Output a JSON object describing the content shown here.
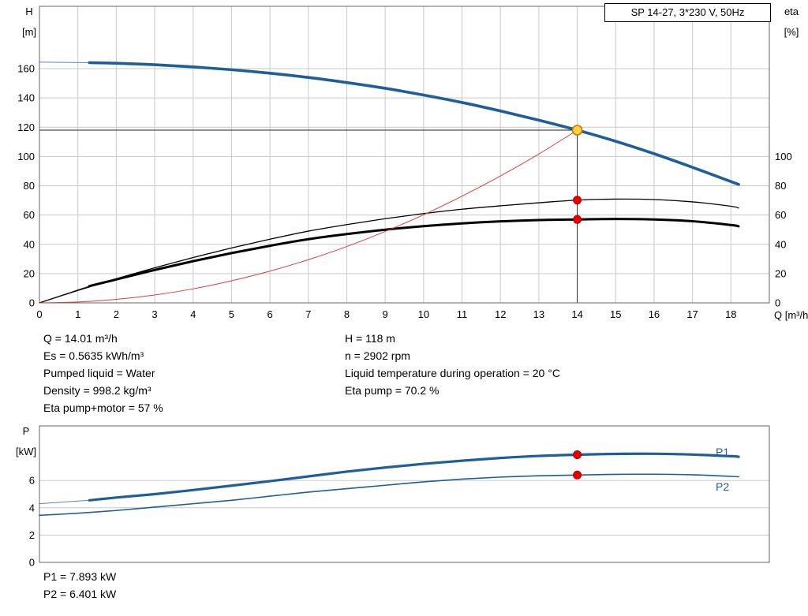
{
  "info_left": [
    "Q = 14.01 m³/h",
    "Es = 0.5635 kWh/m³",
    "Pumped liquid = Water",
    "Density = 998.2 kg/m³",
    "Eta pump+motor = 57 %"
  ],
  "info_right": [
    "H = 118 m",
    "n = 2902 rpm",
    "Liquid temperature during operation = 20 °C",
    "Eta pump = 70.2 %"
  ],
  "power_info": [
    "P1 = 7.893 kW",
    "P2 = 6.401 kW"
  ],
  "curve_labels": {
    "p1": "P1",
    "p2": "P2"
  },
  "colors": {
    "curve_blue": "#205e97",
    "curve_red": "#e03c3c",
    "marker_red": "#e60000",
    "marker_red_edge": "#b00000",
    "marker_yellow_fill": "#ffd53e",
    "marker_yellow_stroke": "#d07000",
    "duty_line": "#222222",
    "grid": "#c9c9c9",
    "frame": "#666666"
  },
  "chart_data": [
    {
      "type": "line",
      "title": "SP 14-27, 3*230 V, 50Hz",
      "x": {
        "label": "Q [m³/h]",
        "min": 0,
        "max": 19,
        "ticks": [
          0,
          1,
          2,
          3,
          4,
          5,
          6,
          7,
          8,
          9,
          10,
          11,
          12,
          13,
          14,
          15,
          16,
          17,
          18
        ]
      },
      "y_left": {
        "label_lines": [
          "H",
          "[m]"
        ],
        "min": 0,
        "max": 202.6,
        "ticks": [
          0,
          20,
          40,
          60,
          80,
          100,
          120,
          140,
          160
        ]
      },
      "y_right": {
        "label_lines": [
          "eta",
          "[%]"
        ],
        "ticks": [
          0,
          20,
          40,
          60,
          80,
          100
        ]
      },
      "duty_point": {
        "q": 14,
        "h": 118
      },
      "series": [
        {
          "name": "head",
          "color_key": "curve_blue",
          "width": 3.6,
          "thin_until": 1.3,
          "points": [
            [
              0,
              164.5
            ],
            [
              1.3,
              164.1
            ],
            [
              2,
              163.7
            ],
            [
              3,
              162.7
            ],
            [
              4,
              161.2
            ],
            [
              5,
              159.3
            ],
            [
              6,
              156.9
            ],
            [
              7,
              154.0
            ],
            [
              8,
              150.5
            ],
            [
              9,
              146.6
            ],
            [
              10,
              142.0
            ],
            [
              11,
              136.9
            ],
            [
              12,
              131.1
            ],
            [
              13,
              124.8
            ],
            [
              14,
              118.0
            ],
            [
              15,
              110.4
            ],
            [
              16,
              101.9
            ],
            [
              17,
              92.6
            ],
            [
              18,
              82.9
            ],
            [
              18.2,
              80.9
            ]
          ]
        },
        {
          "name": "eta-pump",
          "color": "#000000",
          "width": 1.3,
          "points": [
            [
              0,
              0
            ],
            [
              1,
              8.5
            ],
            [
              2,
              16.5
            ],
            [
              3,
              24
            ],
            [
              4,
              31
            ],
            [
              5,
              37.5
            ],
            [
              6,
              43.5
            ],
            [
              7,
              49
            ],
            [
              8,
              53.5
            ],
            [
              9,
              57.5
            ],
            [
              10,
              61
            ],
            [
              11,
              64
            ],
            [
              12,
              66.3
            ],
            [
              13,
              68.4
            ],
            [
              14,
              70.2
            ],
            [
              15,
              70.9
            ],
            [
              16,
              70.6
            ],
            [
              17,
              69
            ],
            [
              18,
              66
            ],
            [
              18.2,
              64.8
            ]
          ]
        },
        {
          "name": "eta-pump-motor",
          "color": "#000000",
          "width": 3,
          "thin_until": 1.3,
          "points": [
            [
              0,
              0
            ],
            [
              1.3,
              11.5
            ],
            [
              2,
              16
            ],
            [
              3,
              22.5
            ],
            [
              4,
              28.5
            ],
            [
              5,
              34
            ],
            [
              6,
              39
            ],
            [
              7,
              43.5
            ],
            [
              8,
              47
            ],
            [
              9,
              50
            ],
            [
              10,
              52.4
            ],
            [
              11,
              54.3
            ],
            [
              12,
              55.7
            ],
            [
              13,
              56.6
            ],
            [
              14,
              57
            ],
            [
              15,
              57.3
            ],
            [
              16,
              57
            ],
            [
              17,
              55.8
            ],
            [
              18,
              53.2
            ],
            [
              18.2,
              52.3
            ]
          ]
        },
        {
          "name": "duty-parabola",
          "color_key": "curve_red",
          "width": 1,
          "points": [
            [
              0,
              0
            ],
            [
              1,
              0.6
            ],
            [
              2,
              2.4
            ],
            [
              3,
              5.4
            ],
            [
              4,
              9.6
            ],
            [
              5,
              15.1
            ],
            [
              6,
              21.7
            ],
            [
              7,
              29.5
            ],
            [
              8,
              38.5
            ],
            [
              9,
              48.8
            ],
            [
              10,
              60.2
            ],
            [
              11,
              72.9
            ],
            [
              12,
              86.7
            ],
            [
              13,
              101.7
            ],
            [
              14,
              118
            ]
          ]
        }
      ],
      "markers": [
        {
          "q": 14,
          "v": 118,
          "style": "duty"
        },
        {
          "q": 14,
          "v": 70.2,
          "style": "dot"
        },
        {
          "q": 14,
          "v": 57,
          "style": "dot"
        }
      ]
    },
    {
      "type": "line",
      "x": {
        "min": 0,
        "max": 19,
        "ticks": []
      },
      "y": {
        "label_lines": [
          "P",
          "[kW]"
        ],
        "min": 0,
        "max": 10,
        "ticks": [
          0,
          2,
          4,
          6
        ]
      },
      "series": [
        {
          "name": "P1",
          "color_key": "curve_blue",
          "width": 3.2,
          "thin_until": 1.3,
          "points": [
            [
              0,
              4.3
            ],
            [
              1.3,
              4.55
            ],
            [
              2,
              4.75
            ],
            [
              3,
              5.0
            ],
            [
              4,
              5.3
            ],
            [
              5,
              5.62
            ],
            [
              6,
              5.95
            ],
            [
              7,
              6.3
            ],
            [
              8,
              6.65
            ],
            [
              9,
              6.95
            ],
            [
              10,
              7.22
            ],
            [
              11,
              7.45
            ],
            [
              12,
              7.65
            ],
            [
              13,
              7.8
            ],
            [
              14,
              7.89
            ],
            [
              15,
              7.95
            ],
            [
              16,
              7.96
            ],
            [
              17,
              7.9
            ],
            [
              18,
              7.78
            ],
            [
              18.2,
              7.74
            ]
          ]
        },
        {
          "name": "P2",
          "color_key": "curve_blue",
          "width": 1.6,
          "points": [
            [
              0,
              3.45
            ],
            [
              1,
              3.6
            ],
            [
              2,
              3.8
            ],
            [
              3,
              4.05
            ],
            [
              4,
              4.3
            ],
            [
              5,
              4.55
            ],
            [
              6,
              4.85
            ],
            [
              7,
              5.15
            ],
            [
              8,
              5.4
            ],
            [
              9,
              5.65
            ],
            [
              10,
              5.9
            ],
            [
              11,
              6.1
            ],
            [
              12,
              6.25
            ],
            [
              13,
              6.35
            ],
            [
              14,
              6.4
            ],
            [
              15,
              6.45
            ],
            [
              16,
              6.46
            ],
            [
              17,
              6.42
            ],
            [
              18,
              6.3
            ],
            [
              18.2,
              6.27
            ]
          ]
        }
      ],
      "markers": [
        {
          "q": 14,
          "v": 7.893,
          "style": "dot"
        },
        {
          "q": 14,
          "v": 6.401,
          "style": "dot"
        }
      ]
    }
  ]
}
